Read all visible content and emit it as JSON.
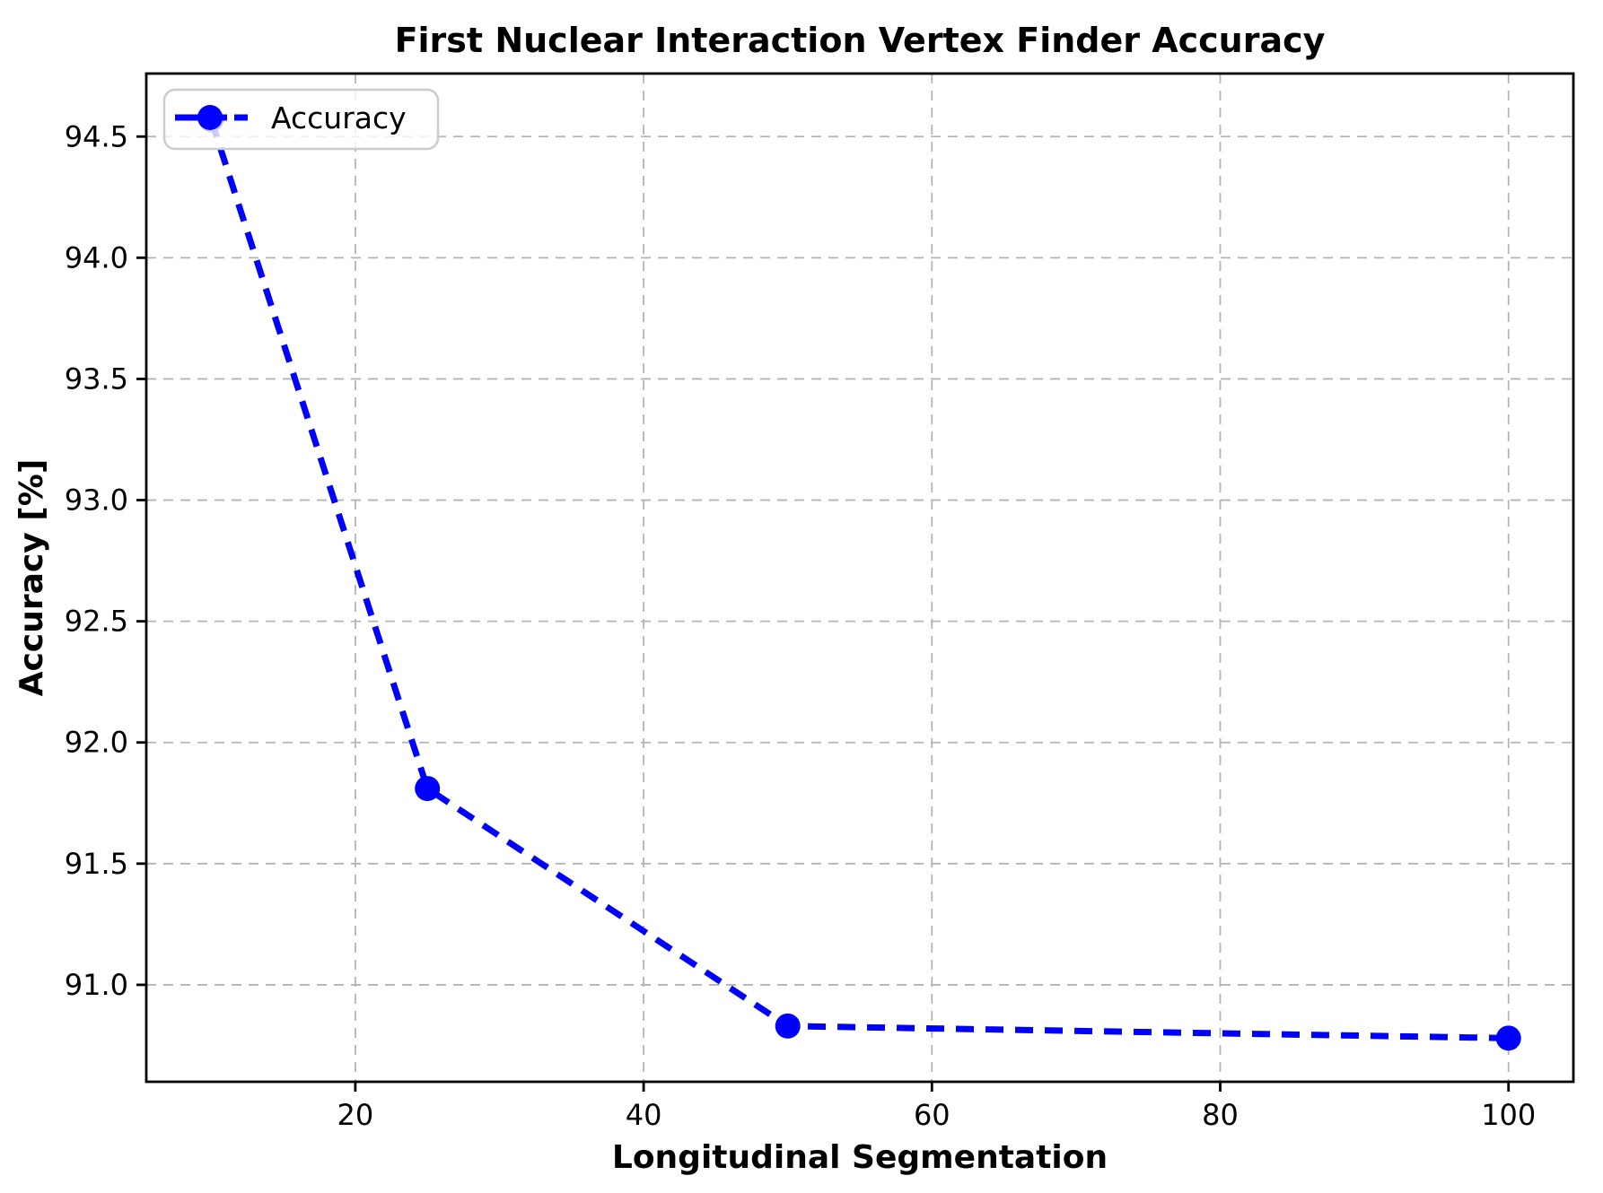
{
  "figure": {
    "background": "#ffffff"
  },
  "chart_data": {
    "type": "line",
    "title": "First Nuclear Interaction Vertex Finder Accuracy",
    "xlabel": "Longitudinal Segmentation",
    "ylabel": "Accuracy [%]",
    "series": [
      {
        "name": "Accuracy",
        "x": [
          10,
          25,
          50,
          100
        ],
        "y": [
          94.57,
          91.81,
          90.83,
          90.78
        ],
        "color": "#0000ff",
        "linestyle": "dashed",
        "marker": "circle"
      }
    ],
    "xlim": [
      5.5,
      104.5
    ],
    "ylim": [
      90.6,
      94.76
    ],
    "xticks": [
      20,
      40,
      60,
      80,
      100
    ],
    "yticks": [
      91.0,
      91.5,
      92.0,
      92.5,
      93.0,
      93.5,
      94.0,
      94.5
    ],
    "grid": true,
    "grid_linestyle": "dashed",
    "legend": {
      "position": "upper left",
      "labels": [
        "Accuracy"
      ]
    },
    "colors": {
      "line": "#0000ff",
      "grid": "#b4b4b4",
      "axis": "#000000",
      "background": "#ffffff",
      "legend_border": "#cccccc",
      "legend_background": "#ffffff"
    }
  }
}
